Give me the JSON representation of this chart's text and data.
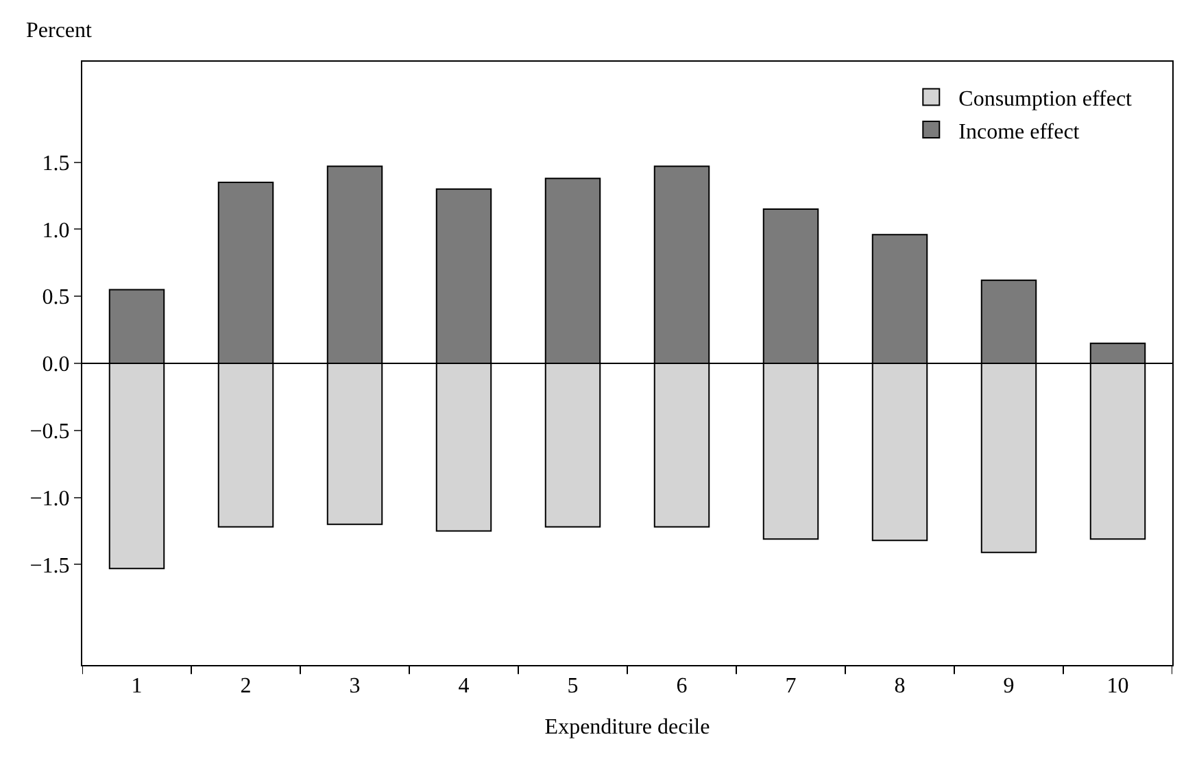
{
  "chart_data": {
    "type": "bar",
    "stacked": true,
    "ylabel": "Percent",
    "xlabel": "Expenditure decile",
    "categories": [
      "1",
      "2",
      "3",
      "4",
      "5",
      "6",
      "7",
      "8",
      "9",
      "10"
    ],
    "series": [
      {
        "name": "Consumption effect",
        "color": "#d4d4d4",
        "values": [
          -1.53,
          -1.22,
          -1.2,
          -1.25,
          -1.22,
          -1.22,
          -1.31,
          -1.32,
          -1.41,
          -1.31
        ]
      },
      {
        "name": "Income effect",
        "color": "#7b7b7b",
        "values": [
          0.55,
          1.35,
          1.47,
          1.3,
          1.38,
          1.47,
          1.15,
          0.96,
          0.62,
          0.15
        ]
      }
    ],
    "ylim": [
      -2.25,
      2.25
    ],
    "yticks": [
      {
        "value": -1.5,
        "label": "−1.5"
      },
      {
        "value": -1.0,
        "label": "−1.0"
      },
      {
        "value": -0.5,
        "label": "−0.5"
      },
      {
        "value": 0,
        "label": "0.0"
      },
      {
        "value": 0.5,
        "label": "0.5"
      },
      {
        "value": 1.0,
        "label": "1.0"
      },
      {
        "value": 1.5,
        "label": "1.5"
      }
    ],
    "ref_lines": [
      {
        "axis": "y",
        "value": 0,
        "color": "#000000"
      }
    ],
    "legend": "top right"
  }
}
